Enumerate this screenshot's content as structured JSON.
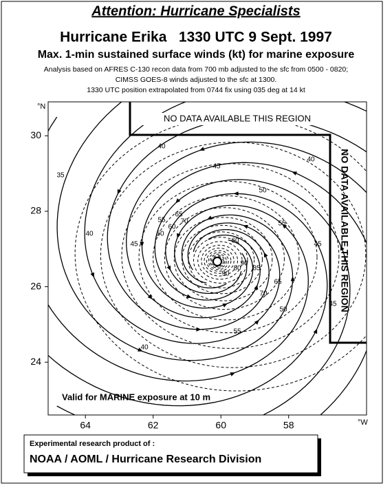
{
  "header": {
    "title": "Attention: Hurricane Specialists",
    "storm": "Hurricane Erika   1330 UTC 9 Sept. 1997",
    "subtitle": "Max. 1-min sustained surface winds (kt) for marine exposure",
    "notes": [
      "Analysis based on AFRES C-130 recon data from 700 mb adjusted to the sfc from 0500 - 0820;",
      "CIMSS GOES-8 winds adjusted to the sfc at 1300.",
      "1330 UTC position extrapolated from 0744  fix using 035 deg at 14 kt"
    ]
  },
  "map": {
    "lat_unit": "°N",
    "lon_unit": "°W",
    "lon_lim": [
      65.1,
      55.7
    ],
    "lat_lim": [
      22.6,
      30.9
    ],
    "lon_ticks": [
      64,
      62,
      60,
      58
    ],
    "lat_ticks": [
      24,
      26,
      28,
      30
    ],
    "no_data_top": "NO DATA AVAILABLE THIS REGION",
    "no_data_right": "NO DATA AVAILABLE THIS REGION",
    "valid": "Valid for MARINE exposure at 10 m",
    "contour_labels": [
      "35",
      "40",
      "40",
      "45",
      "45",
      "50",
      "50",
      "55",
      "60",
      "65",
      "70",
      "55",
      "60",
      "80",
      "85",
      "90",
      "90",
      "70",
      "65",
      "55",
      "50",
      "45",
      "40",
      "45",
      "40"
    ]
  },
  "footer": {
    "line1": "Experimental research product of :",
    "line2": "NOAA / AOML / Hurricane Research Division"
  }
}
